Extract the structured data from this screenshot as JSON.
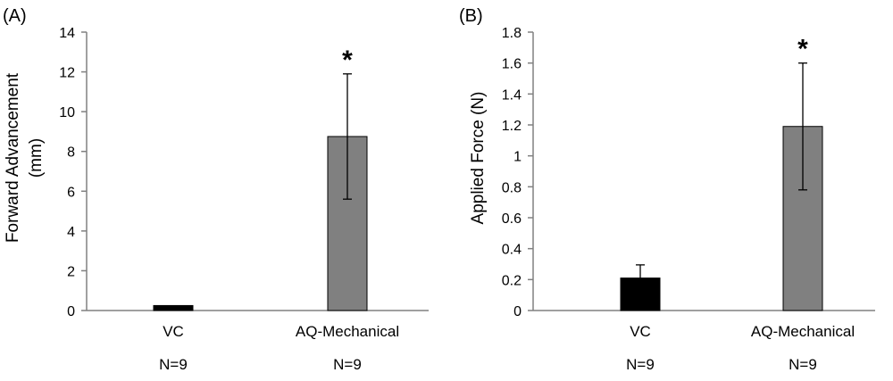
{
  "chart_data": [
    {
      "type": "bar",
      "panel_label": "(A)",
      "title": "",
      "ylabel": [
        "Forward Advancement",
        "(mm)"
      ],
      "xlabel": "",
      "ylim": [
        0,
        14
      ],
      "yticks": [
        0,
        2,
        4,
        6,
        8,
        10,
        12,
        14
      ],
      "categories": [
        "VC",
        "AQ-Mechanical"
      ],
      "values": [
        0.25,
        8.75
      ],
      "errors": [
        0,
        3.15
      ],
      "significance": [
        "",
        "*"
      ],
      "sample_sizes": [
        "N=9",
        "N=9"
      ],
      "bar_colors": [
        "#000000",
        "#808080"
      ],
      "grid": false
    },
    {
      "type": "bar",
      "panel_label": "(B)",
      "title": "",
      "ylabel": [
        "Applied Force (N)"
      ],
      "xlabel": "",
      "ylim": [
        0,
        1.8
      ],
      "yticks": [
        0,
        0.2,
        0.4,
        0.6,
        0.8,
        1,
        1.2,
        1.4,
        1.6,
        1.8
      ],
      "categories": [
        "VC",
        "AQ-Mechanical"
      ],
      "values": [
        0.21,
        1.19
      ],
      "errors": [
        0.085,
        0.41
      ],
      "significance": [
        "",
        "*"
      ],
      "sample_sizes": [
        "N=9",
        "N=9"
      ],
      "bar_colors": [
        "#000000",
        "#808080"
      ],
      "grid": false
    }
  ]
}
